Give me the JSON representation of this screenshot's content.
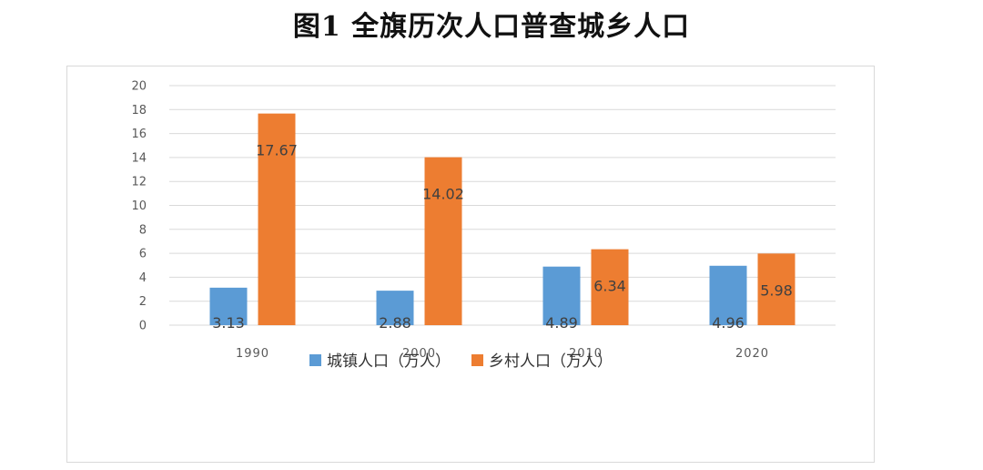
{
  "chart_data": {
    "type": "bar",
    "title": "图1  全旗历次人口普查城乡人口",
    "categories": [
      "1990",
      "2000",
      "2010",
      "2020"
    ],
    "series": [
      {
        "name": "城镇人口（万人）",
        "color": "#5b9bd5",
        "values": [
          3.13,
          2.88,
          4.89,
          4.96
        ]
      },
      {
        "name": "乡村人口（万人）",
        "color": "#ed7d31",
        "values": [
          17.67,
          14.02,
          6.34,
          5.98
        ]
      }
    ],
    "data_labels": [
      [
        "3.13",
        "2.88",
        "4.89",
        "4.96"
      ],
      [
        "17.67",
        "14.02",
        "6.34",
        "5.98"
      ]
    ],
    "yticks": [
      "0",
      "2",
      "4",
      "6",
      "8",
      "10",
      "12",
      "14",
      "16",
      "18",
      "20"
    ],
    "ylim": [
      0,
      20
    ],
    "grid": true,
    "legend_position": "bottom",
    "xlabel": "",
    "ylabel": ""
  }
}
